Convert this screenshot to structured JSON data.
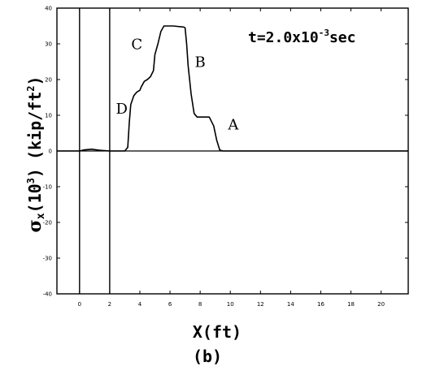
{
  "chart_data": {
    "type": "line",
    "xlabel": "X(ft)",
    "ylabel_main": "σ",
    "ylabel_sub": "x",
    "ylabel_rest": "(10",
    "ylabel_exp": "3",
    "ylabel_close": ")",
    "ylabel_unit": "(kip/ft",
    "ylabel_unit_exp": "2",
    "ylabel_unit_close": ")",
    "caption": "(b)",
    "time_label": "t=2.0x10",
    "time_exp": "-3",
    "time_unit": "sec",
    "xlim": [
      -1.5,
      21.8
    ],
    "ylim": [
      -40,
      40
    ],
    "xticks": [
      0,
      2,
      4,
      6,
      8,
      10,
      12,
      14,
      16,
      18,
      20
    ],
    "xtick_labels": [
      "0",
      "2",
      "4",
      "6",
      "8",
      "10",
      "12",
      "14",
      "16",
      "18",
      "20"
    ],
    "yticks": [
      -40,
      -30,
      -20,
      -10,
      0,
      10,
      20,
      30,
      40
    ],
    "ytick_labels": [
      "-40",
      "-30",
      "-20",
      "-10",
      "0",
      "10",
      "20",
      "30",
      "40"
    ],
    "vertical_lines": [
      0,
      2
    ],
    "baseline_y": 0,
    "series": [
      {
        "points": [
          [
            -1.5,
            0
          ],
          [
            0,
            0
          ],
          [
            0.3,
            0.3
          ],
          [
            0.8,
            0.5
          ],
          [
            1.3,
            0.2
          ],
          [
            2.0,
            0
          ],
          [
            3.0,
            0
          ],
          [
            3.2,
            1.0
          ],
          [
            3.3,
            8.0
          ],
          [
            3.4,
            13.0
          ],
          [
            3.6,
            15.5
          ],
          [
            3.8,
            16.5
          ],
          [
            4.0,
            17.0
          ],
          [
            4.1,
            18.0
          ],
          [
            4.3,
            19.5
          ],
          [
            4.5,
            20.0
          ],
          [
            4.7,
            20.8
          ],
          [
            4.9,
            22.5
          ],
          [
            5.0,
            27.0
          ],
          [
            5.2,
            30.0
          ],
          [
            5.4,
            33.5
          ],
          [
            5.6,
            35.0
          ],
          [
            6.2,
            35.0
          ],
          [
            6.9,
            34.7
          ],
          [
            7.0,
            34.5
          ],
          [
            7.1,
            30.0
          ],
          [
            7.2,
            24.0
          ],
          [
            7.4,
            16.0
          ],
          [
            7.6,
            10.5
          ],
          [
            7.8,
            9.5
          ],
          [
            8.6,
            9.5
          ],
          [
            8.9,
            7.0
          ],
          [
            9.1,
            3.0
          ],
          [
            9.3,
            0.3
          ],
          [
            9.5,
            0
          ],
          [
            21.8,
            0
          ]
        ]
      }
    ],
    "annotations": [
      {
        "text": "A",
        "x": 10.2,
        "y": 6.0
      },
      {
        "text": "B",
        "x": 8.0,
        "y": 23.5
      },
      {
        "text": "C",
        "x": 3.8,
        "y": 28.5
      },
      {
        "text": "D",
        "x": 2.8,
        "y": 10.5
      }
    ]
  }
}
